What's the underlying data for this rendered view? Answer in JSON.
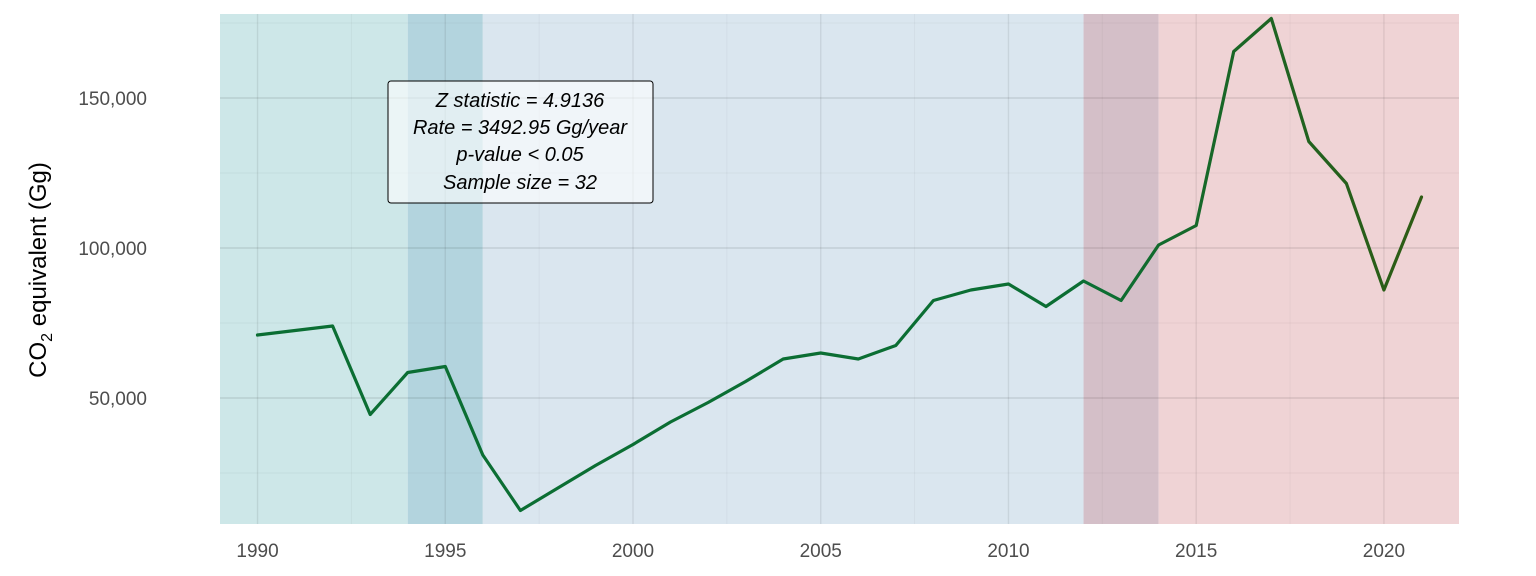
{
  "chart_data": {
    "type": "line",
    "title": "",
    "xlabel": "",
    "ylabel": {
      "prefix": "CO",
      "subscript": "2",
      "suffix": " equivalent (Gg)"
    },
    "xlim": [
      1989,
      2022
    ],
    "ylim": [
      8000,
      178000
    ],
    "x_ticks": [
      1990,
      1995,
      2000,
      2005,
      2010,
      2015,
      2020
    ],
    "y_ticks": [
      50000,
      100000,
      150000
    ],
    "y_tick_labels": [
      "50,000",
      "100,000",
      "150,000"
    ],
    "grid": true,
    "bands": [
      {
        "from": 1989,
        "to": 1994,
        "color": "#cde7e8"
      },
      {
        "from": 1994,
        "to": 1996,
        "color": "#b3d4de"
      },
      {
        "from": 1996,
        "to": 2012,
        "color": "#dae6ef"
      },
      {
        "from": 2012,
        "to": 2014,
        "color": "#d4bfc8"
      },
      {
        "from": 2014,
        "to": 2022,
        "color": "#efd3d5"
      }
    ],
    "series": [
      {
        "color_start": "#0b6e33",
        "color_end": "#2e5b14",
        "x": [
          1990,
          1991,
          1992,
          1993,
          1994,
          1995,
          1996,
          1997,
          1998,
          1999,
          2000,
          2001,
          2002,
          2003,
          2004,
          2005,
          2006,
          2007,
          2008,
          2009,
          2010,
          2011,
          2012,
          2013,
          2014,
          2015,
          2016,
          2017,
          2018,
          2019,
          2020,
          2021
        ],
        "y": [
          71000,
          72500,
          74000,
          44500,
          58500,
          60500,
          31000,
          12500,
          20000,
          27500,
          34500,
          42000,
          48500,
          55500,
          63000,
          65000,
          63000,
          67500,
          82500,
          86000,
          88000,
          80500,
          89000,
          82500,
          101000,
          107500,
          165500,
          176500,
          135500,
          121500,
          86000,
          117000
        ]
      }
    ],
    "annotation": [
      "Z statistic = 4.9136",
      "Rate = 3492.95 Gg/year",
      "p-value < 0.05",
      "Sample size = 32"
    ]
  }
}
